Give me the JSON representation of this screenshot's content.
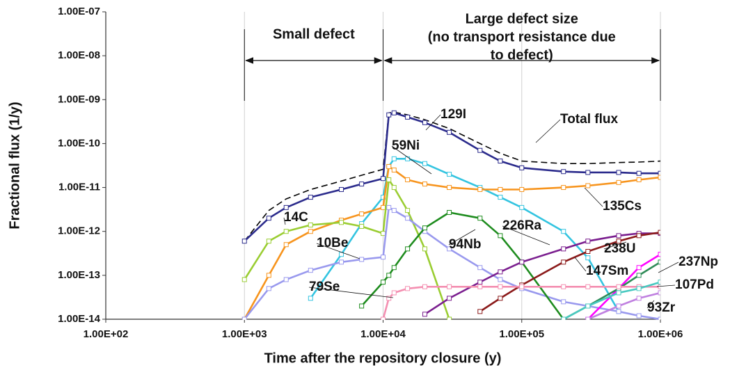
{
  "chart_data": {
    "type": "line",
    "xlabel": "Time after the repository closure (y)",
    "ylabel": "Fractional flux (1/y)",
    "xscale": "log",
    "yscale": "log",
    "xlim": [
      100,
      1000000
    ],
    "xticks": [
      {
        "value": 100,
        "label": "1.00E+02"
      },
      {
        "value": 1000,
        "label": "1.00E+03"
      },
      {
        "value": 10000,
        "label": "1.00E+04"
      },
      {
        "value": 100000,
        "label": "1.00E+05"
      },
      {
        "value": 1000000,
        "label": "1.00E+06"
      }
    ],
    "ylim": [
      1e-14,
      1e-07
    ],
    "yticks": [
      {
        "value": 1e-14,
        "label": "1.00E-14"
      },
      {
        "value": 1e-13,
        "label": "1.00E-13"
      },
      {
        "value": 1e-12,
        "label": "1.00E-12"
      },
      {
        "value": 1e-11,
        "label": "1.00E-11"
      },
      {
        "value": 1e-10,
        "label": "1.00E-10"
      },
      {
        "value": 1e-09,
        "label": "1.00E-09"
      },
      {
        "value": 1e-08,
        "label": "1.00E-08"
      },
      {
        "value": 1e-07,
        "label": "1.00E-07"
      }
    ],
    "grid": "x",
    "regions": [
      {
        "from": 1000,
        "to": 10000,
        "lines": [
          "Small defect"
        ]
      },
      {
        "from": 10000,
        "to": 1000000,
        "lines": [
          "Large defect size",
          "(no transport resistance due",
          "to defect)"
        ]
      }
    ],
    "x": [
      1000,
      1500,
      2000,
      3000,
      5000,
      7000,
      10000,
      11000,
      12000,
      15000,
      20000,
      30000,
      50000,
      70000,
      100000,
      200000,
      300000,
      500000,
      700000,
      1000000
    ],
    "series": [
      {
        "name": "Total flux",
        "color": "#000000",
        "dash": true,
        "values": [
          6e-13,
          3e-12,
          5.5e-12,
          9e-12,
          1.4e-11,
          1.9e-11,
          2.6e-11,
          5e-10,
          5.2e-10,
          4.5e-10,
          3.5e-10,
          2.2e-10,
          1e-10,
          6e-11,
          4e-11,
          3.5e-11,
          3.5e-11,
          3.7e-11,
          3.8e-11,
          4e-11
        ]
      },
      {
        "name": "129I",
        "color": "#2b2b8c",
        "values": [
          6e-13,
          2e-12,
          3.5e-12,
          6e-12,
          9e-12,
          1.2e-11,
          1.6e-11,
          4.5e-10,
          5e-10,
          4e-10,
          3e-10,
          1.8e-10,
          7e-11,
          4e-11,
          2.8e-11,
          2.3e-11,
          2.2e-11,
          2.2e-11,
          2.1e-11,
          2.1e-11
        ]
      },
      {
        "name": "59Ni",
        "color": "#33c4e0",
        "values": [
          null,
          null,
          null,
          3e-14,
          3e-13,
          1.5e-12,
          6e-12,
          3e-11,
          4.5e-11,
          4.5e-11,
          3.5e-11,
          2e-11,
          1e-11,
          6e-12,
          3.5e-12,
          1e-12,
          2.5e-13,
          1.5e-14,
          null,
          null
        ]
      },
      {
        "name": "135Cs",
        "color": "#f7941d",
        "values": [
          1e-14,
          1e-13,
          5e-13,
          1e-12,
          1.8e-12,
          2.5e-12,
          3.5e-12,
          3e-11,
          2.5e-11,
          1.5e-11,
          1.2e-11,
          1e-11,
          9e-12,
          9e-12,
          9e-12,
          1e-11,
          1.1e-11,
          1.3e-11,
          1.5e-11,
          1.7e-11
        ]
      },
      {
        "name": "14C",
        "color": "#9acd32",
        "values": [
          8e-14,
          6e-13,
          1e-12,
          1.4e-12,
          1.6e-12,
          1.3e-12,
          9e-13,
          1.5e-11,
          1e-11,
          3e-12,
          4e-13,
          1e-14,
          null,
          null,
          null,
          null,
          null,
          null,
          null,
          null
        ]
      },
      {
        "name": "10Be",
        "color": "#9999ee",
        "values": [
          1e-14,
          5e-14,
          8e-14,
          1.3e-13,
          2e-13,
          2.3e-13,
          2.6e-13,
          3.5e-12,
          3e-12,
          2e-12,
          1e-12,
          4e-13,
          1.5e-13,
          8e-14,
          5e-14,
          2.5e-14,
          2e-14,
          1.5e-14,
          1.2e-14,
          1e-14
        ]
      },
      {
        "name": "94Nb",
        "color": "#1e8c1e",
        "values": [
          null,
          null,
          null,
          null,
          null,
          2e-14,
          7e-14,
          1e-13,
          1.5e-13,
          4e-13,
          1.2e-12,
          2.7e-12,
          2e-12,
          8e-13,
          2e-13,
          1e-14,
          null,
          null,
          null,
          null
        ]
      },
      {
        "name": "226Ra",
        "color": "#7b1f8f",
        "values": [
          null,
          null,
          null,
          null,
          null,
          null,
          null,
          null,
          null,
          null,
          1.3e-14,
          3e-14,
          7e-14,
          1.2e-13,
          2e-13,
          4e-13,
          6e-13,
          8e-13,
          9e-13,
          9e-13
        ]
      },
      {
        "name": "147Sm",
        "color": "#ff00ff",
        "values": [
          null,
          null,
          null,
          null,
          null,
          null,
          null,
          null,
          null,
          null,
          null,
          null,
          null,
          null,
          null,
          null,
          1e-14,
          5e-14,
          1.5e-13,
          3e-13
        ]
      },
      {
        "name": "238U",
        "color": "#8b1a1a",
        "values": [
          null,
          null,
          null,
          null,
          null,
          null,
          null,
          null,
          null,
          null,
          null,
          null,
          1.5e-14,
          3e-14,
          6e-14,
          2e-13,
          3.5e-13,
          6e-13,
          8e-13,
          9.5e-13
        ]
      },
      {
        "name": "237Np",
        "color": "#2e8b57",
        "values": [
          null,
          null,
          null,
          null,
          null,
          null,
          null,
          null,
          null,
          null,
          null,
          null,
          null,
          null,
          null,
          1e-14,
          2e-14,
          5e-14,
          1e-13,
          2e-13
        ]
      },
      {
        "name": "79Se",
        "color": "#f48fb1",
        "values": [
          null,
          null,
          null,
          null,
          null,
          null,
          1e-14,
          3e-14,
          4e-14,
          5e-14,
          5.5e-14,
          5.5e-14,
          5.5e-14,
          5.5e-14,
          5.5e-14,
          5.5e-14,
          5.5e-14,
          5.5e-14,
          5.5e-14,
          5.5e-14
        ]
      },
      {
        "name": "107Pd",
        "color": "#48c9c0",
        "values": [
          null,
          null,
          null,
          null,
          null,
          null,
          null,
          null,
          null,
          null,
          null,
          null,
          null,
          null,
          null,
          1e-14,
          2e-14,
          4e-14,
          5e-14,
          7e-14
        ]
      },
      {
        "name": "93Zr",
        "color": "#c080e0",
        "values": [
          null,
          null,
          null,
          null,
          null,
          null,
          null,
          null,
          null,
          null,
          null,
          null,
          null,
          null,
          null,
          null,
          1e-14,
          2e-14,
          3e-14,
          4e-14
        ]
      }
    ]
  }
}
